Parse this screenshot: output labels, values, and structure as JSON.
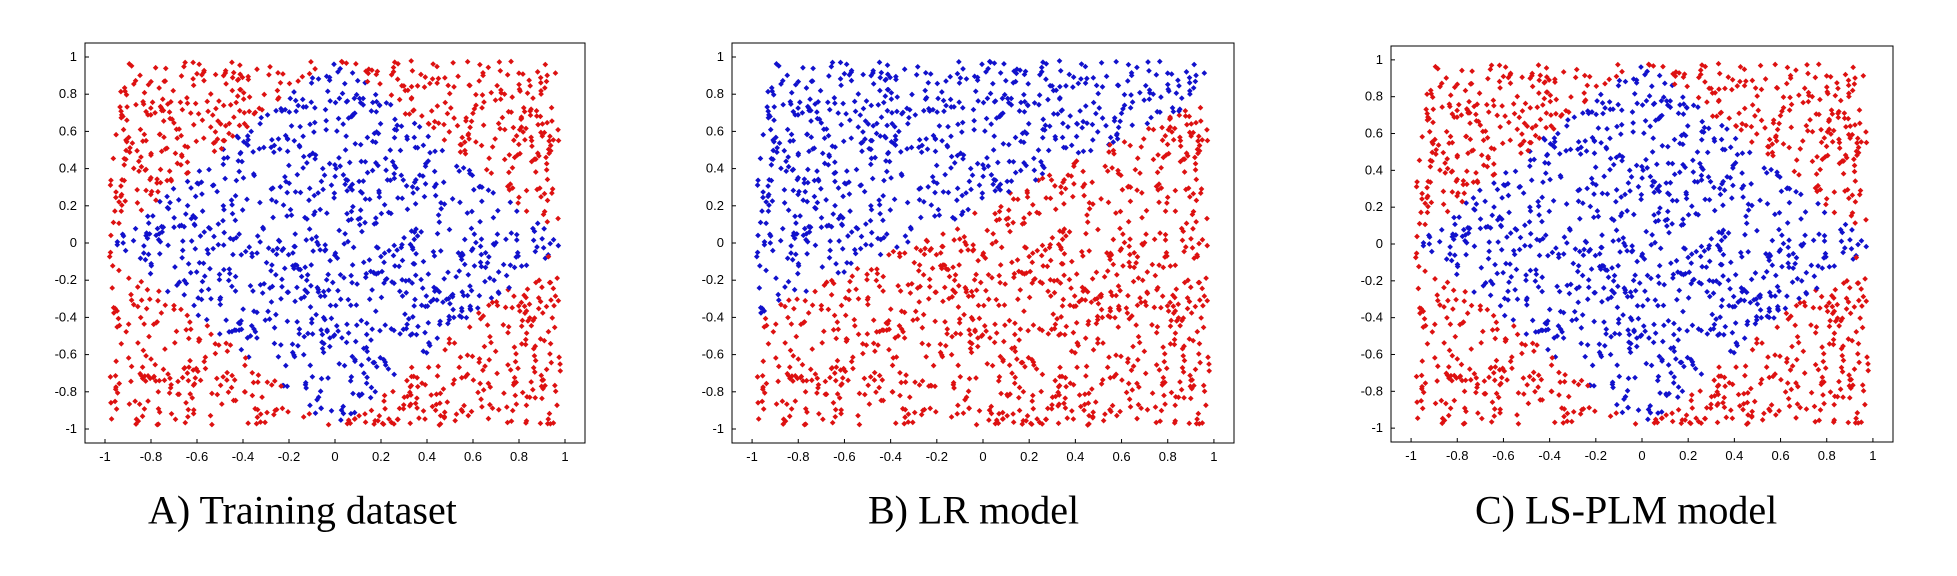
{
  "colors": {
    "class_a": "#dd1111",
    "class_b": "#1111cc",
    "axis": "#000000"
  },
  "chart_data": [
    {
      "type": "scatter",
      "caption": "A) Training dataset",
      "decision_region": "diamond",
      "xlim": [
        -1,
        1
      ],
      "ylim": [
        -1,
        1
      ],
      "xticks": [
        "-1",
        "-0.8",
        "-0.6",
        "-0.4",
        "-0.2",
        "0",
        "0.2",
        "0.4",
        "0.6",
        "0.8",
        "1"
      ],
      "yticks": [
        "1",
        "0.8",
        "0.6",
        "0.4",
        "0.2",
        "0",
        "-0.2",
        "-0.4",
        "-0.6",
        "-0.8",
        "-1"
      ],
      "grid": false,
      "series": [
        {
          "color": "#dd1111",
          "region": "outside diamond |x|+|y|>1"
        },
        {
          "color": "#1111cc",
          "region": "inside diamond |x|+|y|<=1"
        }
      ]
    },
    {
      "type": "scatter",
      "caption": "B) LR model",
      "decision_region": "linear",
      "xlim": [
        -1,
        1
      ],
      "ylim": [
        -1,
        1
      ],
      "xticks": [
        "-1",
        "-0.8",
        "-0.6",
        "-0.4",
        "-0.2",
        "0",
        "0.2",
        "0.4",
        "0.6",
        "0.8",
        "1"
      ],
      "yticks": [
        "1",
        "0.8",
        "0.6",
        "0.4",
        "0.2",
        "0",
        "-0.2",
        "-0.4",
        "-0.6",
        "-0.8",
        "-1"
      ],
      "grid": false,
      "series": [
        {
          "color": "#dd1111",
          "region": "below line y = 0.6x + 0.2"
        },
        {
          "color": "#1111cc",
          "region": "above line y = 0.6x + 0.2"
        }
      ]
    },
    {
      "type": "scatter",
      "caption": "C) LS-PLM model",
      "decision_region": "diamond",
      "xlim": [
        -1,
        1
      ],
      "ylim": [
        -1,
        1
      ],
      "xticks": [
        "-1",
        "-0.8",
        "-0.6",
        "-0.4",
        "-0.2",
        "0",
        "0.2",
        "0.4",
        "0.6",
        "0.8",
        "1"
      ],
      "yticks": [
        "1",
        "0.8",
        "0.6",
        "0.4",
        "0.2",
        "0",
        "-0.2",
        "-0.4",
        "-0.6",
        "-0.8",
        "-1"
      ],
      "grid": false,
      "series": [
        {
          "color": "#dd1111",
          "region": "outside diamond |x|+|y|>1"
        },
        {
          "color": "#1111cc",
          "region": "inside diamond |x|+|y|<=1"
        }
      ]
    }
  ]
}
